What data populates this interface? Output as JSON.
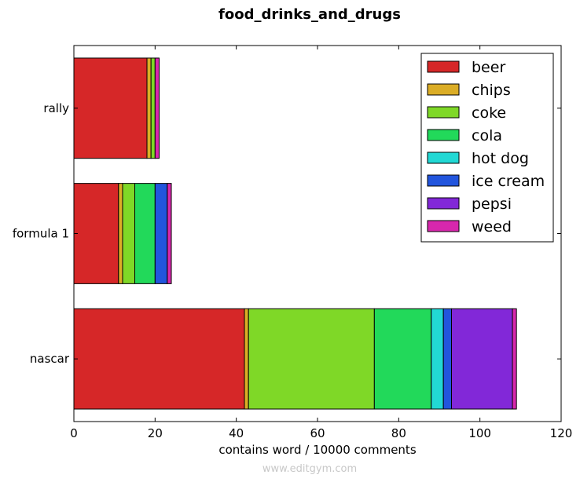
{
  "chart_data": {
    "type": "bar",
    "orientation": "horizontal",
    "stacked": true,
    "title": "food_drinks_and_drugs",
    "xlabel": "contains word / 10000 comments",
    "ylabel": "",
    "xlim": [
      0,
      120
    ],
    "xticks": [
      0,
      20,
      40,
      60,
      80,
      100,
      120
    ],
    "categories": [
      "nascar",
      "formula 1",
      "rally"
    ],
    "series": [
      {
        "name": "beer",
        "color": "#d62728",
        "values": [
          42,
          11,
          18
        ]
      },
      {
        "name": "chips",
        "color": "#dbad26",
        "values": [
          1,
          1,
          1
        ]
      },
      {
        "name": "coke",
        "color": "#7fd827",
        "values": [
          31,
          3,
          1
        ]
      },
      {
        "name": "cola",
        "color": "#22d95a",
        "values": [
          14,
          5,
          0
        ]
      },
      {
        "name": "hot dog",
        "color": "#22d8d4",
        "values": [
          3,
          0,
          0
        ]
      },
      {
        "name": "ice cream",
        "color": "#2255dd",
        "values": [
          2,
          3,
          0
        ]
      },
      {
        "name": "pepsi",
        "color": "#8228d8",
        "values": [
          15,
          0,
          0
        ]
      },
      {
        "name": "weed",
        "color": "#d827ad",
        "values": [
          1,
          1,
          1
        ]
      }
    ],
    "grid": false,
    "legend_position": "top-right"
  },
  "watermark": "www.editgym.com"
}
